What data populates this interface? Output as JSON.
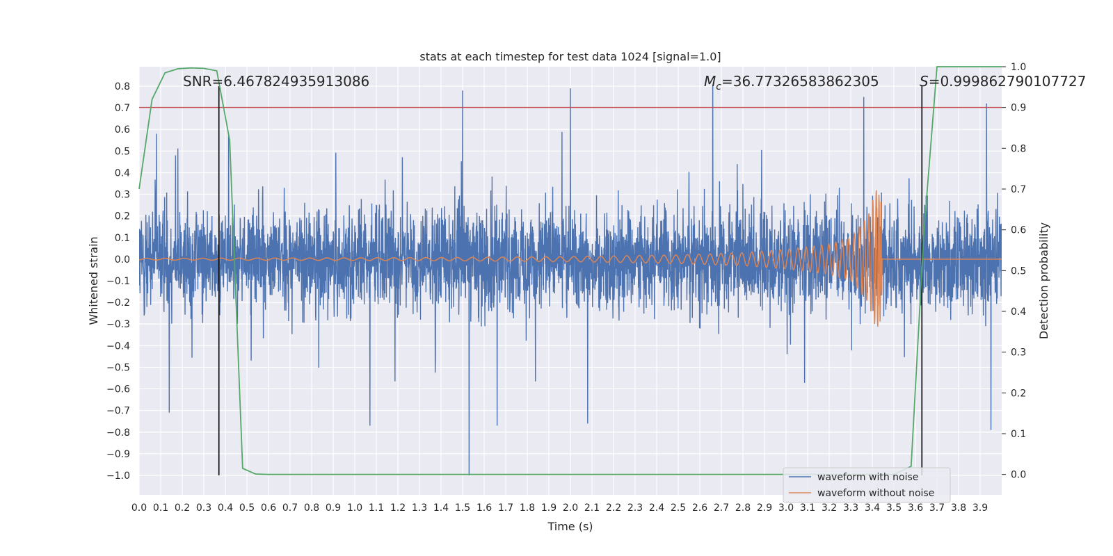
{
  "chart_data": {
    "type": "line",
    "title": "stats at each timestep for test data 1024 [signal=1.0]",
    "xlabel": "Time (s)",
    "ylabel": "Whitened strain",
    "y2label": "Detection probability",
    "xlim": [
      0.0,
      4.0
    ],
    "ylim": [
      -1.09,
      0.89
    ],
    "y2lim": [
      -0.05,
      1.0
    ],
    "x_ticks": [
      "0.0",
      "0.1",
      "0.2",
      "0.3",
      "0.4",
      "0.5",
      "0.6",
      "0.7",
      "0.8",
      "0.9",
      "1.0",
      "1.1",
      "1.2",
      "1.3",
      "1.4",
      "1.5",
      "1.6",
      "1.7",
      "1.8",
      "1.9",
      "2.0",
      "2.1",
      "2.2",
      "2.3",
      "2.4",
      "2.5",
      "2.6",
      "2.7",
      "2.8",
      "2.9",
      "3.0",
      "3.1",
      "3.2",
      "3.3",
      "3.4",
      "3.5",
      "3.6",
      "3.7",
      "3.8",
      "3.9"
    ],
    "y_ticks": [
      "0.8",
      "0.7",
      "0.6",
      "0.5",
      "0.4",
      "0.3",
      "0.2",
      "0.1",
      "0.0",
      "−0.1",
      "−0.2",
      "−0.3",
      "−0.4",
      "−0.5",
      "−0.6",
      "−0.7",
      "−0.8",
      "−0.9",
      "−1.0"
    ],
    "y2_ticks": [
      "1.0",
      "0.9",
      "0.8",
      "0.7",
      "0.6",
      "0.5",
      "0.4",
      "0.3",
      "0.2",
      "0.1",
      "0.0"
    ],
    "grid": true,
    "legend_position": "bottom-right",
    "colors": {
      "background": "#EAEAF2",
      "grid": "#FFFFFF",
      "noise": "#4C72B0",
      "clean": "#DD8452",
      "probability": "#55A868",
      "threshold": "#C44E52",
      "markers": "#000000"
    },
    "series": [
      {
        "name": "waveform with noise",
        "axis": "left",
        "style": "dense noisy trace, roughly -0.77..0.79 with spikes at -1.0",
        "notable_peaks": [
          {
            "x": 0.08,
            "y": 0.58
          },
          {
            "x": 1.5,
            "y": 0.78
          },
          {
            "x": 2.0,
            "y": 0.79
          },
          {
            "x": 2.66,
            "y": 0.8
          },
          {
            "x": 3.36,
            "y": 0.75
          },
          {
            "x": 3.93,
            "y": 0.72
          },
          {
            "x": 1.53,
            "y": -1.0
          },
          {
            "x": 1.66,
            "y": -0.77
          },
          {
            "x": 2.08,
            "y": -0.76
          },
          {
            "x": 3.95,
            "y": -0.79
          },
          {
            "x": 0.14,
            "y": -0.71
          }
        ]
      },
      {
        "name": "waveform without noise",
        "axis": "left",
        "style": "chirp with growing amplitude, merging near 3.43 s then flat",
        "x": [
          0.0,
          0.5,
          1.0,
          1.5,
          2.0,
          2.5,
          2.8,
          3.0,
          3.2,
          3.3,
          3.38,
          3.42,
          3.44,
          3.46,
          3.7,
          4.0
        ],
        "envelope": [
          0.004,
          0.005,
          0.006,
          0.008,
          0.012,
          0.02,
          0.03,
          0.045,
          0.07,
          0.1,
          0.2,
          0.33,
          0.28,
          0.0,
          0.0,
          0.0
        ]
      },
      {
        "name": "detection probability",
        "axis": "right",
        "x": [
          0.0,
          0.06,
          0.12,
          0.18,
          0.24,
          0.3,
          0.36,
          0.42,
          0.48,
          0.54,
          0.6,
          0.7,
          1.0,
          1.5,
          2.0,
          2.5,
          3.0,
          3.5,
          3.58,
          3.64,
          3.7,
          3.76,
          3.82,
          3.9,
          4.0
        ],
        "values": [
          0.7,
          0.92,
          0.985,
          0.995,
          0.997,
          0.996,
          0.99,
          0.82,
          0.015,
          0.001,
          0.0,
          0.0,
          0.0,
          0.0,
          0.0,
          0.0,
          0.0,
          0.0,
          0.02,
          0.6,
          1.0,
          1.0,
          1.0,
          1.0,
          1.0
        ]
      }
    ],
    "threshold": {
      "axis": "right",
      "y": 0.9
    },
    "vertical_markers": [
      {
        "x": 0.37,
        "y_from": -1.0,
        "y_to": 0.8
      },
      {
        "x": 3.63,
        "y_from": -1.0,
        "y_to": 0.8
      }
    ],
    "annotations": {
      "snr": "SNR=6.467824935913086",
      "mc_symbol": "M",
      "mc_sub": "c",
      "mc_value": "=36.77326583862305",
      "s_symbol": "S",
      "s_value": "=0.999862790107727"
    },
    "legend": [
      {
        "label": "waveform with noise",
        "color": "#4C72B0"
      },
      {
        "label": "waveform without noise",
        "color": "#DD8452"
      }
    ]
  }
}
